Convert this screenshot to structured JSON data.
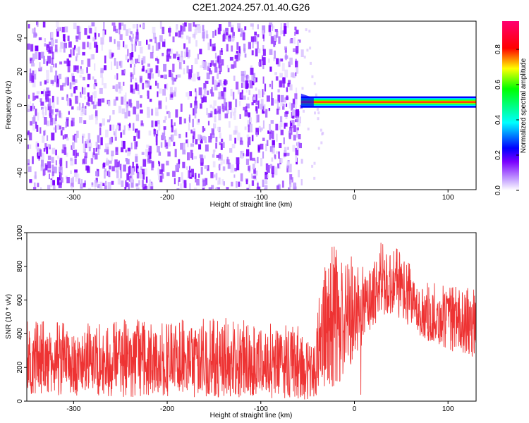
{
  "figure": {
    "title": "C2E1.2024.257.01.40.G26"
  },
  "chart_data": [
    {
      "type": "heatmap",
      "name": "spectrogram",
      "xlabel": "Height of straight line (km)",
      "ylabel": "Frequency (Hz)",
      "xlim": [
        -350,
        130
      ],
      "ylim": [
        -50,
        50
      ],
      "x_ticks": [
        -300,
        -200,
        -100,
        0,
        100
      ],
      "x_tick_labels": [
        "-300",
        "-200",
        "-100",
        "0",
        "100"
      ],
      "y_ticks": [
        -40,
        -20,
        0,
        20,
        40
      ],
      "y_tick_labels": [
        "-40",
        "-20",
        "0",
        "20",
        "40"
      ],
      "noise_region_x": [
        -350,
        -57
      ],
      "signal_line": {
        "x_start": -57,
        "x_end": 130,
        "center_frequency_hz": 2,
        "peak_amplitude": 1.0
      },
      "colorbar": {
        "label": "Normalized spectral amplitude",
        "range": [
          0,
          0.96
        ],
        "ticks": [
          0.0,
          0.2,
          0.4,
          0.6,
          0.8
        ],
        "tick_labels": [
          "0.0",
          "0.2",
          "0.4",
          "0.6",
          "0.8"
        ],
        "colors": [
          "#ffffff",
          "#c9a8ff",
          "#7a00ff",
          "#0000ff",
          "#00ffff",
          "#00ff00",
          "#ffff00",
          "#ff0000",
          "#ff0070"
        ]
      }
    },
    {
      "type": "line",
      "name": "snr",
      "xlabel": "Height of straight line (km)",
      "ylabel": "SNR (10 * v/v)",
      "xlim": [
        -350,
        130
      ],
      "ylim": [
        0,
        1000
      ],
      "x_ticks": [
        -300,
        -200,
        -100,
        0,
        100
      ],
      "x_tick_labels": [
        "-300",
        "-200",
        "-100",
        "0",
        "100"
      ],
      "y_ticks": [
        0,
        200,
        400,
        600,
        800,
        1000
      ],
      "y_tick_labels": [
        "0",
        "200",
        "400",
        "600",
        "800",
        "1000"
      ],
      "color": "#ee3333",
      "envelope": {
        "x": [
          -350,
          -300,
          -250,
          -200,
          -150,
          -100,
          -60,
          -45,
          -35,
          -25,
          -15,
          -5,
          5,
          15,
          25,
          35,
          45,
          55,
          65,
          80,
          100,
          115,
          130
        ],
        "low": [
          40,
          30,
          25,
          25,
          20,
          20,
          10,
          5,
          20,
          60,
          100,
          200,
          300,
          400,
          480,
          520,
          500,
          450,
          400,
          350,
          300,
          280,
          250
        ],
        "high": [
          430,
          400,
          430,
          420,
          440,
          430,
          400,
          310,
          700,
          900,
          800,
          750,
          740,
          760,
          870,
          900,
          880,
          800,
          700,
          640,
          640,
          620,
          600
        ]
      }
    }
  ]
}
